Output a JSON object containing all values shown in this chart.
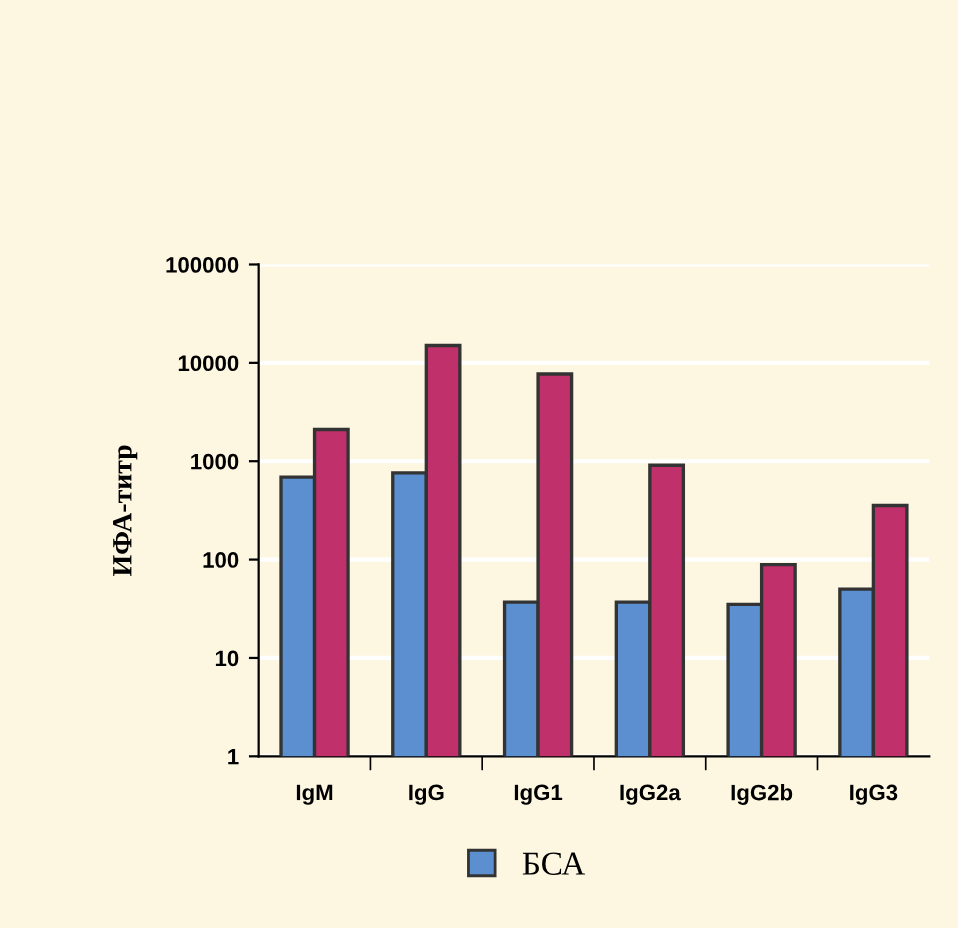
{
  "chart_data": {
    "type": "bar",
    "ylabel": "ИФА-титр",
    "categories": [
      "IgM",
      "IgG",
      "IgG1",
      "IgG2a",
      "IgG2b",
      "IgG3"
    ],
    "series": [
      {
        "name": "БСА",
        "color": "#5b8fd0",
        "values": [
          690,
          760,
          37,
          37,
          35,
          50
        ]
      },
      {
        "color": "#c0306a",
        "values": [
          2100,
          15000,
          7700,
          910,
          89,
          355
        ]
      }
    ],
    "log": true,
    "ylim": [
      1,
      100000
    ],
    "yticks": [
      1,
      10,
      100,
      1000,
      10000,
      100000
    ],
    "grid": "y",
    "legend": "bottom"
  }
}
